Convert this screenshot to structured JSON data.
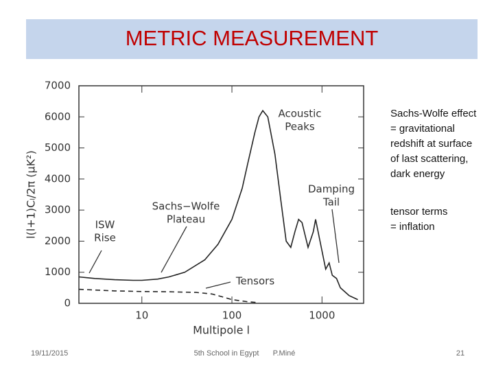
{
  "slide": {
    "title": "METRIC MEASUREMENT",
    "notes": [
      [
        "Sachs-Wolfe effect",
        "= gravitational",
        "redshift at surface",
        "of last scattering,",
        "dark energy"
      ],
      [
        "tensor terms",
        "= inflation"
      ]
    ],
    "footer": {
      "date": "19/11/2015",
      "event": "5th School in Egypt",
      "author": "P.Miné",
      "page": "21"
    }
  },
  "chart_data": {
    "type": "line",
    "x_label": "Multipole l",
    "y_label": "l(l+1)Cₗ/2π (μK²)",
    "xscale": "log",
    "xlim": [
      2,
      2900
    ],
    "xticks": [
      10,
      100,
      1000
    ],
    "ylim": [
      0,
      7000
    ],
    "yticks": [
      0,
      1000,
      2000,
      3000,
      4000,
      5000,
      6000,
      7000
    ],
    "series": [
      {
        "name": "Total",
        "color": "#222222",
        "dash": false,
        "x": [
          2,
          3,
          5,
          8,
          10,
          15,
          20,
          30,
          50,
          70,
          100,
          130,
          150,
          180,
          200,
          220,
          250,
          300,
          350,
          400,
          450,
          500,
          550,
          600,
          700,
          800,
          850,
          950,
          1100,
          1200,
          1300,
          1450,
          1600,
          2000,
          2500
        ],
        "values": [
          850,
          800,
          760,
          740,
          740,
          780,
          850,
          1000,
          1400,
          1900,
          2700,
          3700,
          4500,
          5500,
          6000,
          6200,
          6000,
          4800,
          3300,
          2000,
          1800,
          2300,
          2700,
          2600,
          1800,
          2300,
          2700,
          2000,
          1100,
          1300,
          900,
          800,
          500,
          250,
          120
        ]
      },
      {
        "name": "Tensors",
        "color": "#222222",
        "dash": true,
        "x": [
          2,
          5,
          10,
          20,
          40,
          60,
          80,
          100,
          150,
          200
        ],
        "values": [
          450,
          400,
          380,
          370,
          350,
          300,
          200,
          120,
          50,
          20
        ]
      }
    ],
    "annotations": [
      {
        "lines": [
          "Acoustic",
          "Peaks"
        ]
      },
      {
        "lines": [
          "Damping",
          "Tail"
        ]
      },
      {
        "lines": [
          "Sachs−Wolfe",
          "Plateau"
        ]
      },
      {
        "lines": [
          "ISW",
          "Rise"
        ]
      },
      {
        "lines": [
          "Tensors"
        ]
      }
    ]
  }
}
